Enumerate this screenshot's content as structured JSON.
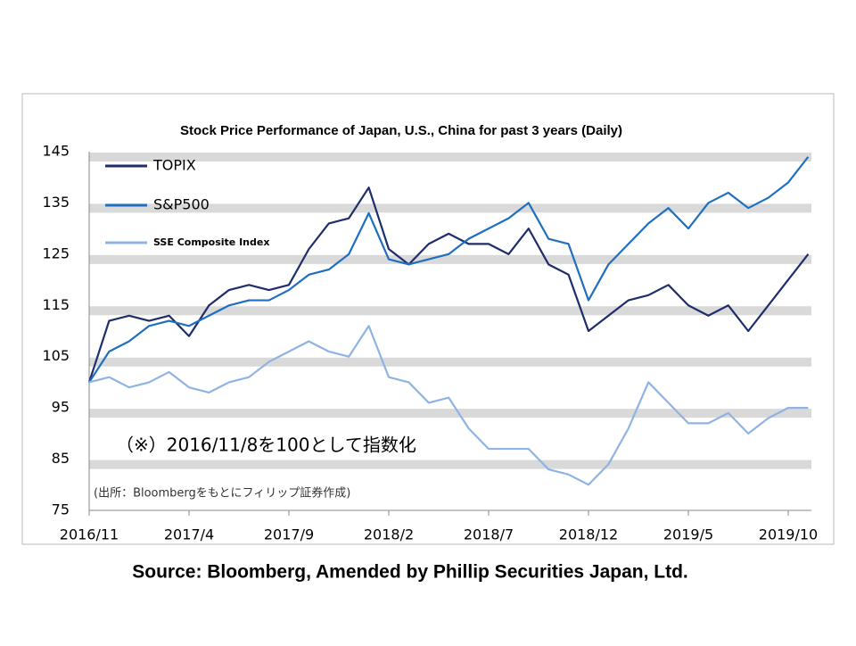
{
  "chart_data": {
    "type": "line",
    "title": "Stock Price Performance of Japan, U.S., China for past 3 years (Daily)",
    "annotations": [
      "（※）2016/11/8を100として指数化",
      "(出所：Bloombergをもとにフィリップ証券作成)"
    ],
    "source": "Source: Bloomberg, Amended by Phillip Securities Japan, Ltd.",
    "x": [
      "2016/11",
      "2016/12",
      "2017/1",
      "2017/2",
      "2017/3",
      "2017/4",
      "2017/5",
      "2017/6",
      "2017/7",
      "2017/8",
      "2017/9",
      "2017/10",
      "2017/11",
      "2017/12",
      "2018/1",
      "2018/2",
      "2018/3",
      "2018/4",
      "2018/5",
      "2018/6",
      "2018/7",
      "2018/8",
      "2018/9",
      "2018/10",
      "2018/11",
      "2018/12",
      "2019/1",
      "2019/2",
      "2019/3",
      "2019/4",
      "2019/5",
      "2019/6",
      "2019/7",
      "2019/8",
      "2019/9",
      "2019/10",
      "2019/11"
    ],
    "xticks": [
      "2016/11",
      "2017/4",
      "2017/9",
      "2018/2",
      "2018/7",
      "2018/12",
      "2019/5",
      "2019/10"
    ],
    "ylim": [
      75,
      145
    ],
    "yticks": [
      75,
      85,
      95,
      105,
      115,
      125,
      135,
      145
    ],
    "grid": true,
    "legend": "top-left",
    "series": [
      {
        "name": "TOPIX",
        "color": "#1f2d6b",
        "values": [
          100,
          112,
          113,
          112,
          113,
          109,
          115,
          118,
          119,
          118,
          119,
          126,
          131,
          132,
          138,
          126,
          123,
          127,
          129,
          127,
          127,
          125,
          130,
          123,
          121,
          110,
          113,
          116,
          117,
          119,
          115,
          113,
          115,
          110,
          115,
          120,
          125
        ]
      },
      {
        "name": "S&P500",
        "color": "#1f6fc0",
        "values": [
          100,
          106,
          108,
          111,
          112,
          111,
          113,
          115,
          116,
          116,
          118,
          121,
          122,
          125,
          133,
          124,
          123,
          124,
          125,
          128,
          130,
          132,
          135,
          128,
          127,
          116,
          123,
          127,
          131,
          134,
          130,
          135,
          137,
          134,
          136,
          139,
          144
        ]
      },
      {
        "name": "SSE Composite Index",
        "color": "#8fb4e3",
        "values": [
          100,
          101,
          99,
          100,
          102,
          99,
          98,
          100,
          101,
          104,
          106,
          108,
          106,
          105,
          111,
          101,
          100,
          96,
          97,
          91,
          87,
          87,
          87,
          83,
          82,
          80,
          84,
          91,
          100,
          96,
          92,
          92,
          94,
          90,
          93,
          95,
          95
        ]
      }
    ]
  }
}
